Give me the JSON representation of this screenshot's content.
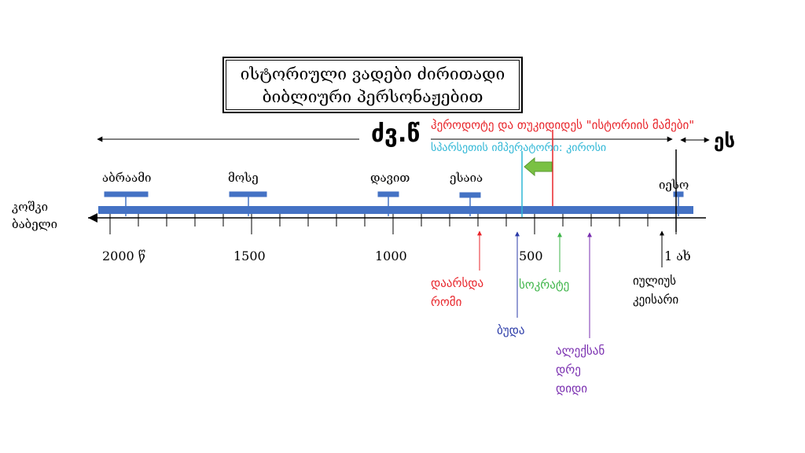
{
  "title": {
    "line1": "ისტორიული ვადები ძირითადი",
    "line2": "ბიბლიური პერსონაჟებით"
  },
  "era_labels": {
    "bc": "ძვ.წ",
    "ad": "ეს"
  },
  "top_annotations": {
    "herodotus": "ჰეროდოტე და თუკიდიდეს \"ისტორიის მამები\"",
    "persia": "სპარსეთის იმპერატორი: კიროსი"
  },
  "left_label": {
    "line1": "კოშკი",
    "line2": "ბაბელი"
  },
  "persons": [
    {
      "name": "აბრაამი",
      "year": 2000
    },
    {
      "name": "მოსე",
      "year": 1500
    },
    {
      "name": "დავით",
      "year": 1000
    },
    {
      "name": "ესაია",
      "year": 700
    },
    {
      "name": "იესო",
      "year": 0
    }
  ],
  "year_labels": [
    "2000 წ",
    "1500",
    "1000",
    "500",
    "1 ახ"
  ],
  "events": {
    "rome": {
      "line1": "დაარსდა",
      "line2": "რომი",
      "color": "#e8252b"
    },
    "buddha": {
      "line1": "ბუდა",
      "color": "#2b3ba8"
    },
    "socrates": {
      "line1": "სოკრატე",
      "color": "#3fb54a"
    },
    "alexander": {
      "line1": "ალექსან",
      "line2": "დრე",
      "line3": "დიდი",
      "color": "#7a2fb0"
    },
    "caesar": {
      "line1": "იულიუს",
      "line2": "კეისარი",
      "color": "#000000"
    }
  },
  "colors": {
    "timeline_bar": "#4472c4",
    "herodotus_line": "#e8252b",
    "persia_line": "#2fb7d6",
    "arrow_green": "#7ac143"
  }
}
